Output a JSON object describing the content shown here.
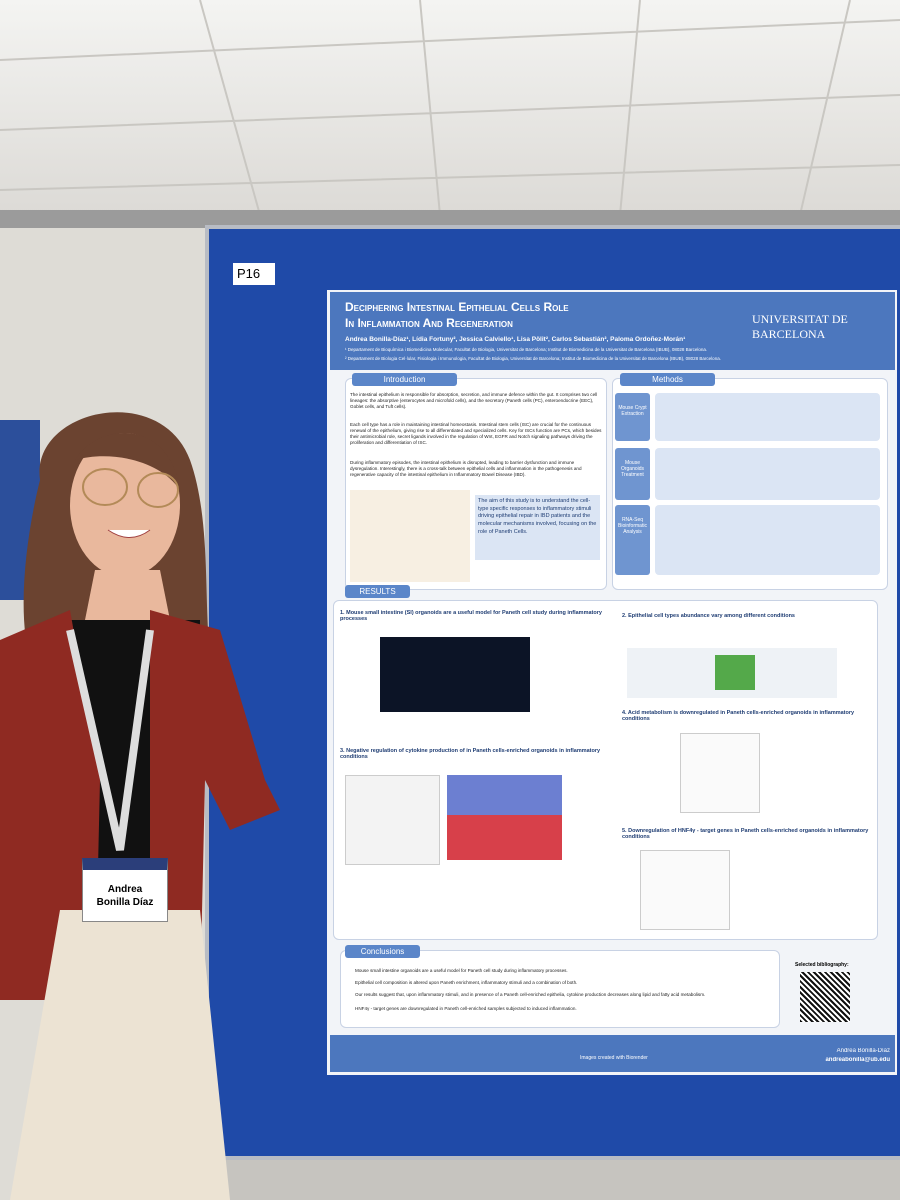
{
  "board_label": "P16",
  "poster": {
    "title_line1": "Deciphering Intestinal Epithelial Cells Role",
    "title_line2": "In Inflammation And Regeneration",
    "institution": "Universitat de Barcelona",
    "authors": "Andrea Bonilla-Díaz¹, Lídia Fortuny², Jessica Calviello¹, Lisa Pölit², Carlos Sebastián², Paloma Ordoñez-Morán¹",
    "affiliations": [
      "¹ Departament de Bioquímica i Biomedicina Molecular, Facultat de Biologia, Universitat de Barcelona; Institut de Biomedicina de la Universitat de Barcelona (IBUB), 08028 Barcelona.",
      "² Departament de Biologia Cel·lular, Fisiologia i Immunologia, Facultat de Biologia, Universitat de Barcelona; Institut de Biomedicina de la Universitat de Barcelona (IBUB), 08028 Barcelona."
    ],
    "introduction": {
      "heading": "Introduction",
      "paragraphs": [
        "The intestinal epithelium is responsible for absorption, secretion, and immune defence within the gut. It comprises two cell lineages: the absorptive (enterocytes and microfold cells), and the secretory (Paneth cells (PC), enteroendocrine (EEC), Goblet cells, and Tuft cells).",
        "Each cell type has a role in maintaining intestinal homeostasis. Intestinal stem cells (ISC) are crucial for the continuous renewal of the epithelium, giving rise to all differentiated and specialized cells. Key for ISCs function are PCs, which besides their antimicrobial role, secret ligands involved in the regulation of Wnt, EGFR and Notch signaling pathways driving the proliferation and differentiation of ISC.",
        "During inflammatory episodes, the intestinal epithelium is disrupted, leading to barrier dysfunction and immune dysregulation. Interestingly, there is a cross-talk between epithelial cells and inflammation in the pathogenesis and regenerative capacity of the intestinal epithelium in Inflammatory Bowel Disease (IBD)."
      ],
      "aim": "The aim of this study is to understand the cell-type specific responses to inflammatory stimuli driving epithelial repair in IBD patients and the molecular mechanisms involved, focusing on the role of Paneth Cells."
    },
    "methods": {
      "heading": "Methods",
      "steps": [
        "Mouse Crypt Extraction",
        "Mouse Organoids Treatment",
        "RNA-Seq Bioinformatic Analysis"
      ]
    },
    "results": {
      "heading": "RESULTS",
      "sections": [
        "1. Mouse small intestine (SI) organoids are a useful model for Paneth cell study during inflammatory processes",
        "2. Epithelial cell types abundance vary among different conditions",
        "3. Negative regulation of cytokine production of in Paneth cells-enriched organoids in inflammatory conditions",
        "4. Acid metabolism is downregulated in Paneth cells-enriched organoids in inflammatory conditions",
        "5. Downregulation of HNF4γ - target genes in Paneth cells-enriched organoids in inflammatory conditions"
      ]
    },
    "conclusions": {
      "heading": "Conclusions",
      "items": [
        "Mouse small intestine organoids are a useful model for Paneth cell study during inflammatory processes.",
        "Epithelial cell composition is altered upon Paneth enrichment, inflammatory stimuli and a combination of both.",
        "Our results suggest that, upon inflammatory stimuli, and in presence of a Paneth cell-enriched epithelia, cytokine production decreases along lipid and fatty acid metabolism.",
        "HNF4γ - target genes are downregulated in Paneth cell-enriched samples subjected to induced inflammation."
      ]
    },
    "bibliography": "Selected bibliography:",
    "contact_name": "Andrea Bonilla-Díaz",
    "contact_email": "andreabonilla@ub.edu",
    "footer_credit": "Images created with Biorender"
  },
  "badge": {
    "name_line1": "Andrea",
    "name_line2": "Bonilla Díaz"
  }
}
